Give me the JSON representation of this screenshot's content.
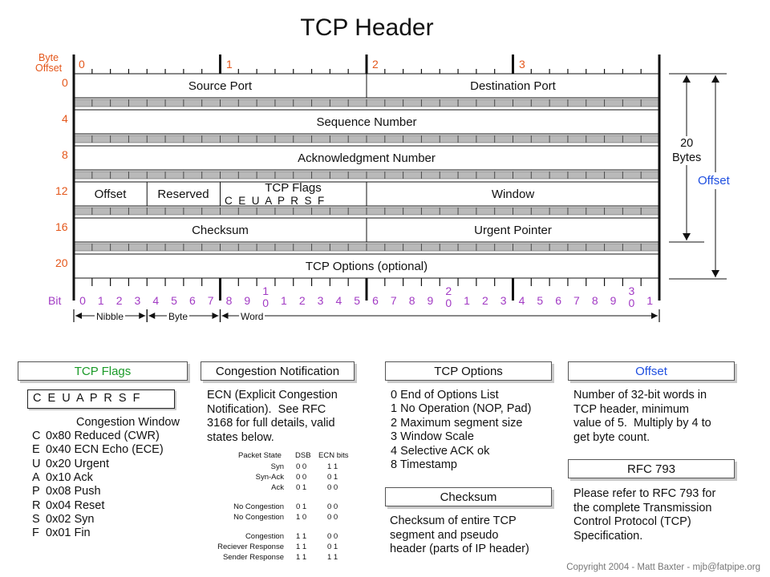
{
  "title": "TCP Header",
  "byte_offset_label": "Byte\nOffset",
  "byte_index_labels": [
    "0",
    "1",
    "2",
    "3"
  ],
  "row_offsets": [
    "0",
    "4",
    "8",
    "12",
    "16",
    "20"
  ],
  "fields": {
    "source_port": "Source Port",
    "destination_port": "Destination Port",
    "sequence_number": "Sequence Number",
    "ack_number": "Acknowledgment Number",
    "offset": "Offset",
    "reserved": "Reserved",
    "tcp_flags": "TCP Flags",
    "flag_letters": "C  E  U  A  P  R  S  F",
    "window": "Window",
    "checksum": "Checksum",
    "urgent_pointer": "Urgent Pointer",
    "tcp_options": "TCP Options (optional)"
  },
  "right_labels": {
    "twenty_bytes": "20\nBytes",
    "offset": "Offset"
  },
  "bit_label": "Bit",
  "bit_numbers": [
    "0",
    "1",
    "2",
    "3",
    "4",
    "5",
    "6",
    "7",
    "8",
    "9",
    "1\n0",
    "1",
    "2",
    "3",
    "4",
    "5",
    "6",
    "7",
    "8",
    "9",
    "2\n0",
    "1",
    "2",
    "3",
    "4",
    "5",
    "6",
    "7",
    "8",
    "9",
    "3\n0",
    "1"
  ],
  "scale_labels": {
    "nibble": "Nibble",
    "byte": "Byte",
    "word": "Word"
  },
  "panels": {
    "tcp_flags": {
      "header": "TCP Flags",
      "box": "C  E  U  A  P  R  S  F",
      "congestion_window": "Congestion Window",
      "items": [
        {
          "letter": "C",
          "text": "0x80 Reduced (CWR)"
        },
        {
          "letter": "E",
          "text": "0x40 ECN Echo (ECE)"
        },
        {
          "letter": "U",
          "text": "0x20 Urgent"
        },
        {
          "letter": "A",
          "text": "0x10 Ack"
        },
        {
          "letter": "P",
          "text": "0x08 Push"
        },
        {
          "letter": "R",
          "text": "0x04 Reset"
        },
        {
          "letter": "S",
          "text": "0x02 Syn"
        },
        {
          "letter": "F",
          "text": "0x01 Fin"
        }
      ]
    },
    "congestion": {
      "header": "Congestion Notification",
      "text": "ECN (Explicit Congestion\nNotification).  See RFC\n3168 for full details, valid\nstates below.",
      "table_headers": [
        "Packet State",
        "DSB",
        "ECN bits"
      ],
      "table_rows": [
        [
          "Syn",
          "0 0",
          "1 1"
        ],
        [
          "Syn-Ack",
          "0 0",
          "0 1"
        ],
        [
          "Ack",
          "0 1",
          "0 0"
        ],
        [
          "No Congestion",
          "0 1",
          "0 0"
        ],
        [
          "No Congestion",
          "1 0",
          "0 0"
        ],
        [
          "Congestion",
          "1 1",
          "0 0"
        ],
        [
          "Reciever Response",
          "1 1",
          "0 1"
        ],
        [
          "Sender Response",
          "1 1",
          "1 1"
        ]
      ]
    },
    "options": {
      "header": "TCP Options",
      "items": [
        "0 End of Options List",
        "1 No Operation (NOP, Pad)",
        "2 Maximum segment size",
        "3 Window Scale",
        "4 Selective ACK ok",
        "8 Timestamp"
      ]
    },
    "checksum": {
      "header": "Checksum",
      "text": "Checksum of entire TCP\nsegment and pseudo\nheader (parts of IP header)"
    },
    "offset": {
      "header": "Offset",
      "text": "Number of 32-bit words in\nTCP header, minimum\nvalue of 5.  Multiply by 4 to\nget byte count."
    },
    "rfc": {
      "header": "RFC 793",
      "text": "Please refer to RFC 793 for\nthe complete Transmission\nControl Protocol (TCP)\nSpecification."
    }
  },
  "copyright": "Copyright 2004 - Matt Baxter - mjb@fatpipe.org",
  "colors": {
    "orange": "#e4571b",
    "purple": "#a23bc4",
    "green": "#1a9a28",
    "blue": "#1f4fe0"
  }
}
